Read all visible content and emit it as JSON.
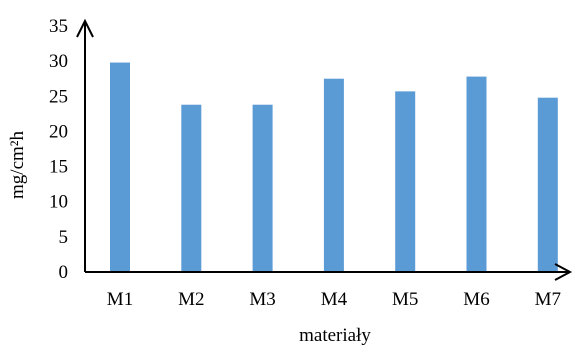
{
  "chart_data": {
    "type": "bar",
    "categories": [
      "M1",
      "M2",
      "M3",
      "M4",
      "M5",
      "M6",
      "M7"
    ],
    "values": [
      29.8,
      23.8,
      23.8,
      27.5,
      25.7,
      27.8,
      24.8
    ],
    "xlabel": "materiały",
    "ylabel": "mg/cm²h",
    "ylim": [
      0,
      35
    ],
    "yticks": [
      "0",
      "5",
      "10",
      "15",
      "20",
      "25",
      "30",
      "35"
    ],
    "grid": false,
    "legend": "none",
    "bar_color": "#5b9bd5",
    "axis_color": "#000000"
  }
}
